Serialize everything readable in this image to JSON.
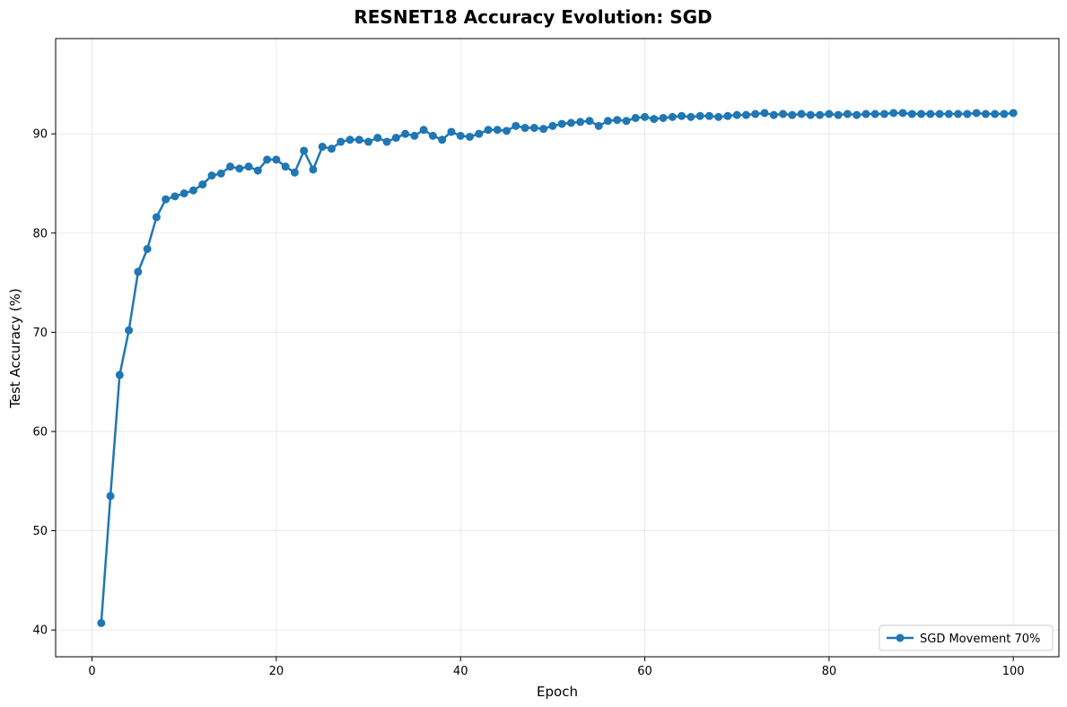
{
  "chart_data": {
    "type": "line",
    "title": "RESNET18 Accuracy Evolution: SGD",
    "xlabel": "Epoch",
    "ylabel": "Test Accuracy (%)",
    "xlim": [
      -3.95,
      104.95
    ],
    "ylim": [
      37.3,
      99.6
    ],
    "xticks": [
      0,
      20,
      40,
      60,
      80,
      100
    ],
    "yticks": [
      40,
      50,
      60,
      70,
      80,
      90
    ],
    "grid": true,
    "legend_position": "lower-right",
    "series": [
      {
        "name": "SGD Movement 70%",
        "color": "#1f77b4",
        "marker": "circle",
        "x": [
          1,
          2,
          3,
          4,
          5,
          6,
          7,
          8,
          9,
          10,
          11,
          12,
          13,
          14,
          15,
          16,
          17,
          18,
          19,
          20,
          21,
          22,
          23,
          24,
          25,
          26,
          27,
          28,
          29,
          30,
          31,
          32,
          33,
          34,
          35,
          36,
          37,
          38,
          39,
          40,
          41,
          42,
          43,
          44,
          45,
          46,
          47,
          48,
          49,
          50,
          51,
          52,
          53,
          54,
          55,
          56,
          57,
          58,
          59,
          60,
          61,
          62,
          63,
          64,
          65,
          66,
          67,
          68,
          69,
          70,
          71,
          72,
          73,
          74,
          75,
          76,
          77,
          78,
          79,
          80,
          81,
          82,
          83,
          84,
          85,
          86,
          87,
          88,
          89,
          90,
          91,
          92,
          93,
          94,
          95,
          96,
          97,
          98,
          99,
          100
        ],
        "y": [
          40.7,
          53.5,
          65.7,
          70.2,
          76.1,
          78.4,
          81.6,
          83.4,
          83.7,
          84.0,
          84.3,
          84.9,
          85.8,
          86.0,
          86.7,
          86.5,
          86.7,
          86.3,
          87.4,
          87.4,
          86.7,
          86.1,
          88.3,
          86.4,
          88.7,
          88.5,
          89.2,
          89.4,
          89.4,
          89.2,
          89.6,
          89.2,
          89.6,
          90.0,
          89.8,
          90.4,
          89.8,
          89.4,
          90.2,
          89.8,
          89.7,
          90.0,
          90.4,
          90.4,
          90.3,
          90.8,
          90.6,
          90.6,
          90.5,
          90.8,
          91.0,
          91.1,
          91.2,
          91.3,
          90.8,
          91.3,
          91.4,
          91.3,
          91.6,
          91.7,
          91.5,
          91.6,
          91.7,
          91.8,
          91.7,
          91.8,
          91.8,
          91.7,
          91.8,
          91.9,
          91.9,
          92.0,
          92.1,
          91.9,
          92.0,
          91.9,
          92.0,
          91.9,
          91.9,
          92.0,
          91.9,
          92.0,
          91.9,
          92.0,
          92.0,
          92.0,
          92.1,
          92.1,
          92.0,
          92.0,
          92.0,
          92.0,
          92.0,
          92.0,
          92.0,
          92.1,
          92.0,
          92.0,
          92.0,
          92.1
        ]
      }
    ]
  }
}
